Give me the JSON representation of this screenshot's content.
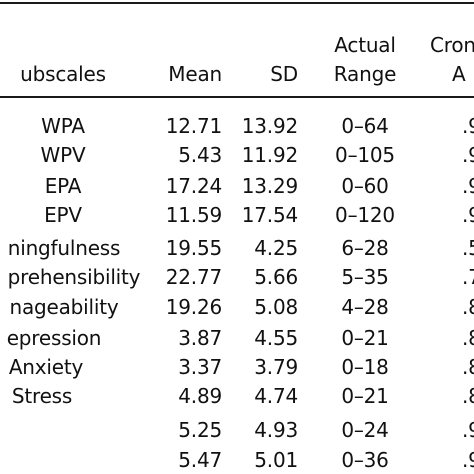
{
  "table": {
    "header": {
      "subscales": "ubscales",
      "mean": "Mean",
      "sd": "SD",
      "range_line1": "Actual",
      "range_line2": "Range",
      "cron_line1": "Cron",
      "cron_line2": "A"
    },
    "rows": [
      {
        "subscale": "WPA",
        "mean": "12.71",
        "sd": "13.92",
        "range": "0–64",
        "cron": ".9"
      },
      {
        "subscale": "WPV",
        "mean": "5.43",
        "sd": "11.92",
        "range": "0–105",
        "cron": ".9"
      },
      {
        "subscale": "EPA",
        "mean": "17.24",
        "sd": "13.29",
        "range": "0–60",
        "cron": ".9"
      },
      {
        "subscale": "EPV",
        "mean": "11.59",
        "sd": "17.54",
        "range": "0–120",
        "cron": ".9"
      },
      {
        "subscale": "ningfulness",
        "mean": "19.55",
        "sd": "4.25",
        "range": "6–28",
        "cron": ".5"
      },
      {
        "subscale": "prehensibility",
        "mean": "22.77",
        "sd": "5.66",
        "range": "5–35",
        "cron": ".7"
      },
      {
        "subscale": "nageability",
        "mean": "19.26",
        "sd": "5.08",
        "range": "4–28",
        "cron": ".8"
      },
      {
        "subscale": "epression",
        "mean": "3.87",
        "sd": "4.55",
        "range": "0–21",
        "cron": ".8"
      },
      {
        "subscale": "Anxiety",
        "mean": "3.37",
        "sd": "3.79",
        "range": "0–18",
        "cron": ".8"
      },
      {
        "subscale": "Stress",
        "mean": "4.89",
        "sd": "4.74",
        "range": "0–21",
        "cron": ".8"
      },
      {
        "subscale": "",
        "mean": "5.25",
        "sd": "4.93",
        "range": "0–24",
        "cron": ".9"
      },
      {
        "subscale": "",
        "mean": "5.47",
        "sd": "5.01",
        "range": "0–36",
        "cron": ".9"
      }
    ]
  }
}
